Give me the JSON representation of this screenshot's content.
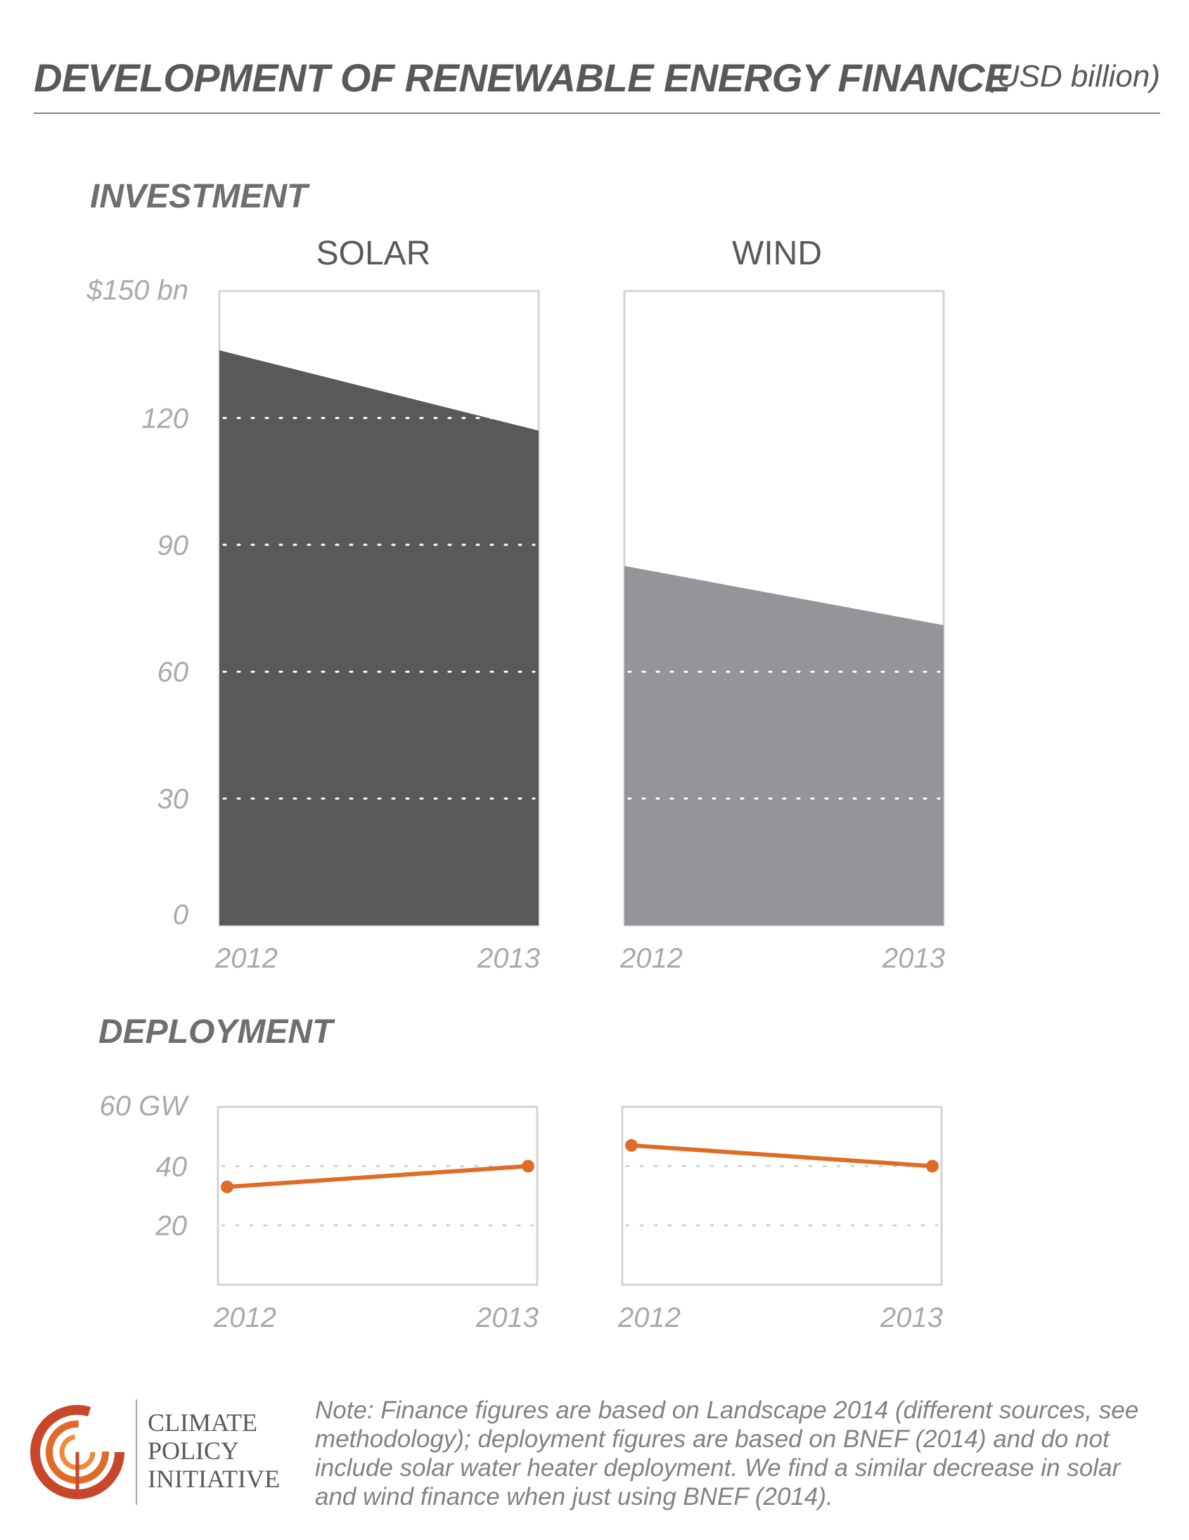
{
  "header": {
    "title": "DEVELOPMENT OF RENEWABLE ENERGY FINANCE",
    "subtitle": "(USD billion)"
  },
  "sections": {
    "investment": "INVESTMENT",
    "deployment": "DEPLOYMENT"
  },
  "colors": {
    "solar_fill": "#58595b",
    "wind_fill": "#939598",
    "deployment_line": "#e06b26",
    "frame": "#d1d3d4",
    "grid": "#d1d3d4",
    "tick_text": "#a7a9ac"
  },
  "chart_data": [
    {
      "type": "area",
      "panel": "investment-solar",
      "title": "SOLAR",
      "x": [
        "2012",
        "2013"
      ],
      "values": [
        136,
        117
      ],
      "ylim": [
        0,
        150
      ],
      "yticks": [
        "0",
        "30",
        "60",
        "90",
        "120",
        "$150 bn"
      ],
      "grid": true
    },
    {
      "type": "area",
      "panel": "investment-wind",
      "title": "WIND",
      "x": [
        "2012",
        "2013"
      ],
      "values": [
        85,
        71
      ],
      "ylim": [
        0,
        150
      ],
      "grid": true
    },
    {
      "type": "line",
      "panel": "deployment-solar",
      "x": [
        "2012",
        "2013"
      ],
      "values": [
        33,
        40
      ],
      "ylim": [
        0,
        60
      ],
      "yticks": [
        "20",
        "40",
        "60 GW"
      ],
      "grid": true
    },
    {
      "type": "line",
      "panel": "deployment-wind",
      "x": [
        "2012",
        "2013"
      ],
      "values": [
        47,
        40
      ],
      "ylim": [
        0,
        60
      ],
      "grid": true
    }
  ],
  "footer": {
    "org_line1": "CLIMATE",
    "org_line2": "POLICY",
    "org_line3": "INITIATIVE",
    "note": "Note: Finance figures are based on Landscape 2014 (different sources, see methodology); deployment figures are based on BNEF (2014) and do not include solar water heater deployment. We find a similar decrease in solar and wind finance when just using BNEF (2014)."
  }
}
